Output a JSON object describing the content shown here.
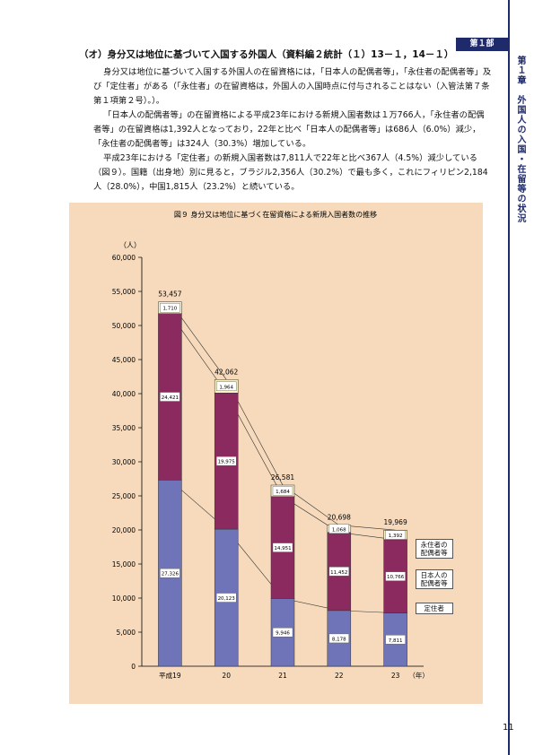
{
  "header": {
    "part": "第１部",
    "chapter": "第１章　外国人の入国・在留等の状況"
  },
  "section_heading": "（オ）身分又は地位に基づいて入国する外国人（資料編２統計（１）13－１，14－１）",
  "paragraphs": [
    "身分又は地位に基づいて入国する外国人の在留資格には，「日本人の配偶者等」，「永住者の配偶者等」及び「定住者」がある（「永住者」の在留資格は，外国人の入国時点に付与されることはない（入管法第７条第１項第２号）。）。",
    "「日本人の配偶者等」の在留資格による平成23年における新規入国者数は１万766人，「永住者の配偶者等」の在留資格は1,392人となっており，22年と比べ「日本人の配偶者等」は686人（6.0%）減少，「永住者の配偶者等」は324人（30.3%）増加している。",
    "平成23年における「定住者」の新規入国者数は7,811人で22年と比べ367人（4.5%）減少している（図９）。国籍（出身地）別に見ると，ブラジル2,356人（30.2%）で最も多く，これにフィリピン2,184人（28.0%），中国1,815人（23.2%）と続いている。"
  ],
  "chart_data": {
    "type": "stacked_bar",
    "title": "図９ 身分又は地位に基づく在留資格による新規入国者数の推移",
    "ylabel": "（人）",
    "xlabel": "（年）",
    "categories": [
      "平成19",
      "20",
      "21",
      "22",
      "23"
    ],
    "series": [
      {
        "name": "定住者",
        "color": "#6f74b8",
        "values": [
          27326,
          20123,
          9946,
          8178,
          7811
        ],
        "value_labels": [
          "27,326",
          "20,123",
          "9,946",
          "8,178",
          "7,811"
        ]
      },
      {
        "name": "日本人の配偶者等",
        "color": "#8a2a5e",
        "values": [
          24421,
          19975,
          14951,
          11452,
          10766
        ],
        "value_labels": [
          "24,421",
          "19,975",
          "14,951",
          "11,452",
          "10,766"
        ]
      },
      {
        "name": "永住者の配偶者等",
        "color": "#f8f5c4",
        "values": [
          1710,
          1964,
          1684,
          1068,
          1392
        ],
        "value_labels": [
          "1,710",
          "1,964",
          "1,684",
          "1,068",
          "1,392"
        ]
      }
    ],
    "totals": {
      "values": [
        53457,
        42062,
        26581,
        20698,
        19969
      ],
      "value_labels": [
        "53,457",
        "42,062",
        "26,581",
        "20,698",
        "19,969"
      ]
    },
    "ylim": [
      0,
      60000
    ],
    "yticks": [
      0,
      {
        "value": 5000,
        "label": "5,000"
      },
      {
        "value": 10000,
        "label": "10,000"
      },
      {
        "value": 15000,
        "label": "15,000"
      },
      {
        "value": 20000,
        "label": "20,000"
      },
      {
        "value": 25000,
        "label": "25,000"
      },
      {
        "value": 30000,
        "label": "30,000"
      },
      {
        "value": 35000,
        "label": "35,000"
      },
      {
        "value": 40000,
        "label": "40,000"
      },
      {
        "value": 45000,
        "label": "45,000"
      },
      {
        "value": 50000,
        "label": "50,000"
      },
      {
        "value": 55000,
        "label": "55,000"
      },
      {
        "value": 60000,
        "label": "60,000"
      }
    ]
  },
  "page_number": "11"
}
